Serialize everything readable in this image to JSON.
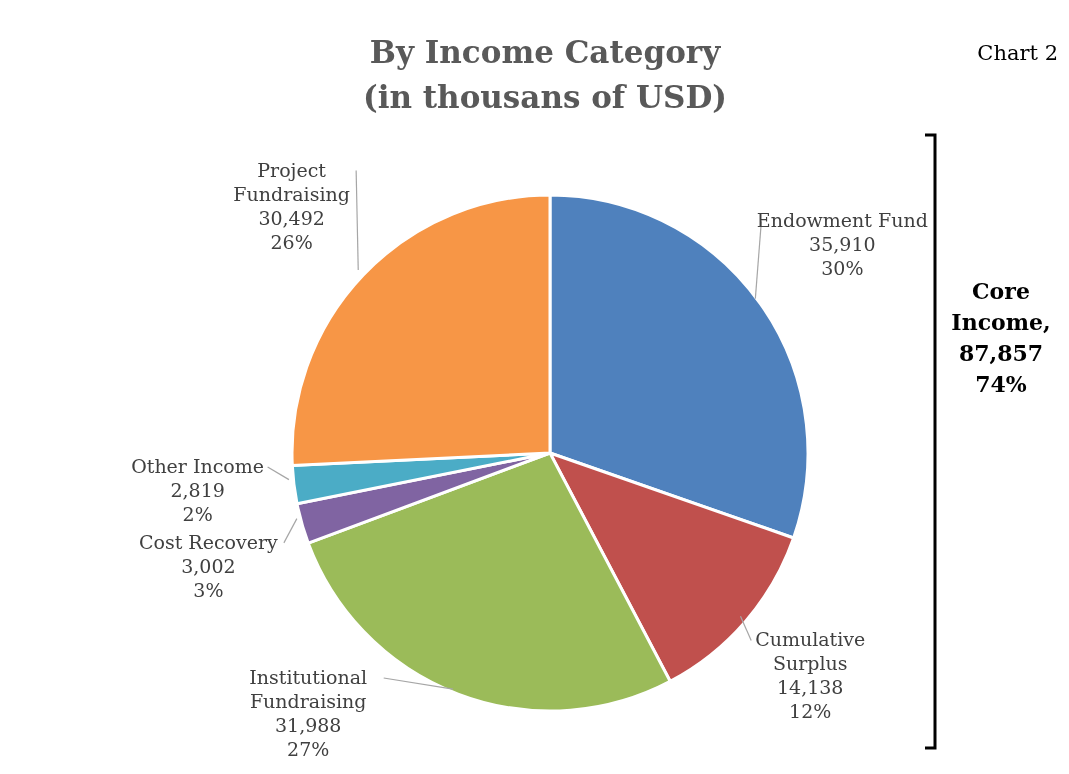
{
  "chart_data": {
    "type": "pie",
    "title": "By Income Category\n(in thousans of USD)",
    "categories": [
      "Endowment Fund",
      "Cumulative Surplus",
      "Institutional Fundraising",
      "Cost Recovery",
      "Other Income",
      "Project Fundraising"
    ],
    "values": [
      35910,
      14138,
      31988,
      3002,
      2819,
      30492
    ],
    "colors": [
      "#4f81bd",
      "#c0504d",
      "#9bbb59",
      "#8064a2",
      "#4bacc6",
      "#f79646"
    ],
    "value_labels": [
      "35,910\n30%",
      "14,138\n12%",
      "31,988\n27%",
      "3,002\n3%",
      "2,819\n2%",
      "30,492\n26%"
    ],
    "annotations": [
      "Chart 2",
      "Core Income, 87,857 74%"
    ],
    "legend": false
  }
}
